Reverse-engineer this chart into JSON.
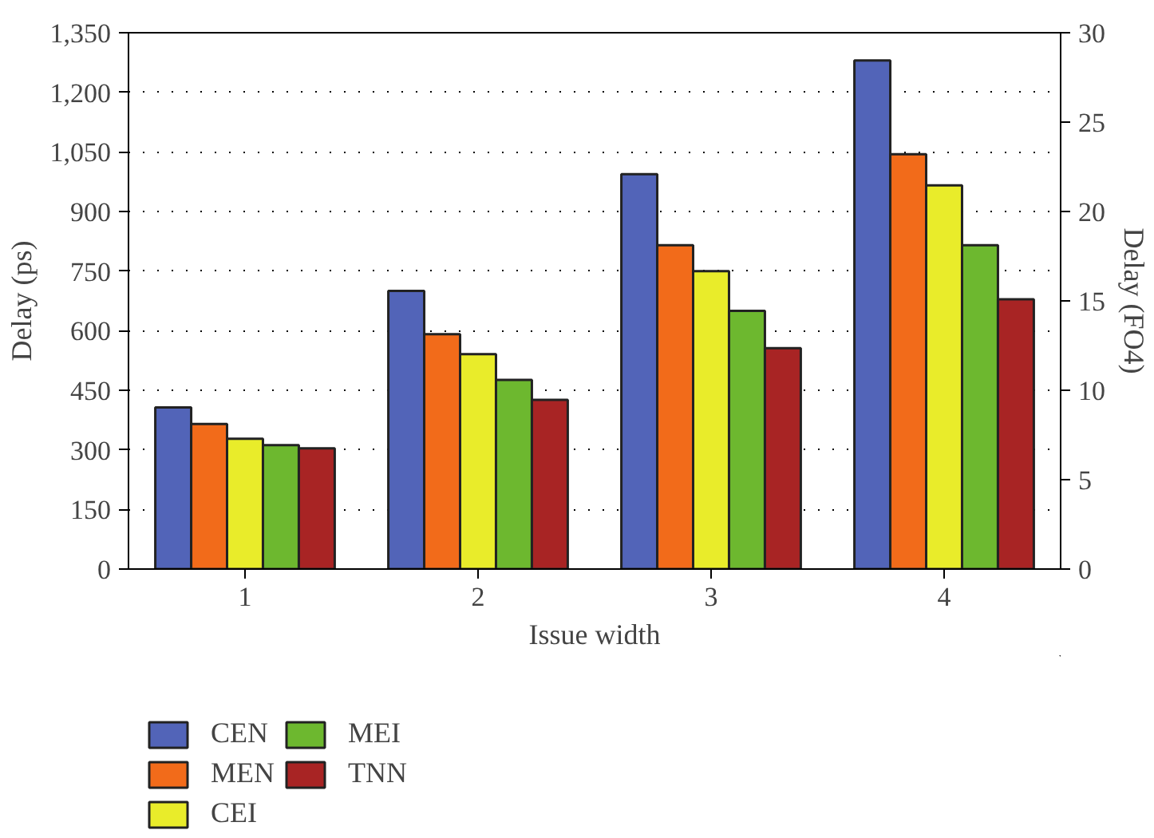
{
  "chart_data": {
    "type": "bar",
    "xlabel": "Issue width",
    "ylabel": "Delay (ps)",
    "y2label": "Delay (FO4)",
    "categories": [
      "1",
      "2",
      "3",
      "4"
    ],
    "series": [
      {
        "name": "CEN",
        "color": "#5264b8",
        "values": [
          407,
          700,
          994,
          1280
        ]
      },
      {
        "name": "MEN",
        "color": "#f26b1a",
        "values": [
          365,
          591,
          815,
          1044
        ]
      },
      {
        "name": "CEI",
        "color": "#e9ec2a",
        "values": [
          328,
          541,
          750,
          966
        ]
      },
      {
        "name": "MEI",
        "color": "#6db82f",
        "values": [
          312,
          476,
          650,
          815
        ]
      },
      {
        "name": "TNN",
        "color": "#a82424",
        "values": [
          304,
          426,
          556,
          679
        ]
      }
    ],
    "ylim": [
      0,
      1350
    ],
    "yticks": [
      0,
      {
        "value": 150,
        "label": "150"
      },
      {
        "value": 300,
        "label": "300"
      },
      {
        "value": 450,
        "label": "450"
      },
      {
        "value": 600,
        "label": "600"
      },
      {
        "value": 750,
        "label": "750"
      },
      {
        "value": 900,
        "label": "900"
      },
      {
        "value": 1050,
        "label": "1,050"
      },
      {
        "value": 1200,
        "label": "1,200"
      },
      {
        "value": 1350,
        "label": "1,350"
      }
    ],
    "y2lim": [
      0,
      30
    ],
    "y2ticks": [
      0,
      5,
      10,
      15,
      20,
      25,
      30
    ],
    "grid": "y",
    "legend": "bottom"
  }
}
